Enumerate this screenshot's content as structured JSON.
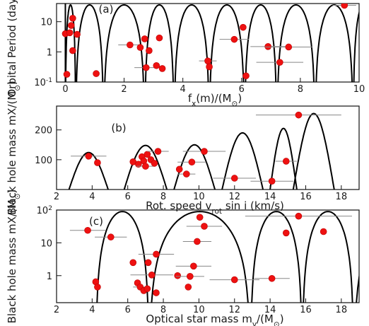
{
  "chart_data": [
    {
      "type": "scatter",
      "panel_label": "(a)",
      "xlabel": "f_x(m)/(M_⊙)",
      "ylabel": "Orbital Period (days)",
      "yscale": "log",
      "xlim": [
        -0.3,
        10
      ],
      "ylim": [
        0.1,
        40
      ],
      "xticks": [
        0,
        2,
        4,
        6,
        8,
        10
      ],
      "yticks": [
        {
          "v": 10,
          "label": "10"
        },
        {
          "v": 1,
          "label": "1"
        },
        {
          "v": 0.1,
          "label": "10^-1"
        }
      ],
      "curve": {
        "roots_x": [
          0,
          0.35,
          1.3,
          2.7,
          3.7,
          4.9,
          6.1,
          7.2,
          8.5,
          9.8
        ],
        "peak_y": 36
      },
      "points": [
        {
          "x": 0.0,
          "y": 4.0
        },
        {
          "x": 0.05,
          "y": 0.18
        },
        {
          "x": 0.15,
          "y": 4.3
        },
        {
          "x": 0.2,
          "y": 7.5
        },
        {
          "x": 0.25,
          "y": 13
        },
        {
          "x": 0.25,
          "y": 1.1
        },
        {
          "x": 0.4,
          "y": 3.8
        },
        {
          "x": 1.05,
          "y": 0.19
        },
        {
          "x": 2.2,
          "y": 1.7,
          "xerr": 0.4
        },
        {
          "x": 2.55,
          "y": 1.4
        },
        {
          "x": 2.7,
          "y": 2.7
        },
        {
          "x": 2.75,
          "y": 0.3,
          "xerr": 0.4
        },
        {
          "x": 2.85,
          "y": 1.1
        },
        {
          "x": 3.1,
          "y": 0.35
        },
        {
          "x": 3.2,
          "y": 2.9
        },
        {
          "x": 3.3,
          "y": 0.28
        },
        {
          "x": 4.85,
          "y": 0.5,
          "xerr": 0.3
        },
        {
          "x": 4.9,
          "y": 0.32
        },
        {
          "x": 5.75,
          "y": 2.6,
          "xerr": 0.5
        },
        {
          "x": 6.05,
          "y": 6.5
        },
        {
          "x": 6.15,
          "y": 0.16
        },
        {
          "x": 6.9,
          "y": 1.5,
          "xerr": 0.6
        },
        {
          "x": 7.3,
          "y": 0.45,
          "xerr": 0.8
        },
        {
          "x": 7.6,
          "y": 1.45,
          "xerr": 0.8
        },
        {
          "x": 9.5,
          "y": 35,
          "xerr": 0.4
        }
      ]
    },
    {
      "type": "scatter",
      "panel_label": "(b)",
      "xlabel": "Rot. speed v_rot sin i (km/s)",
      "ylabel": "Black hole mass mX/(M_⊙)",
      "xlim": [
        2,
        19
      ],
      "ylim": [
        0,
        280
      ],
      "xticks": [
        2,
        4,
        6,
        8,
        10,
        12,
        14,
        16,
        18
      ],
      "yticks": [
        {
          "v": 100,
          "label": "100"
        },
        {
          "v": 200,
          "label": "200"
        }
      ],
      "curve": {
        "arches": [
          [
            2.7,
            4.9,
            124
          ],
          [
            5.8,
            8.2,
            148
          ],
          [
            8.6,
            10.9,
            150
          ],
          [
            11.3,
            13.6,
            190
          ],
          [
            14.0,
            15.5,
            205
          ],
          [
            15.3,
            17.6,
            255
          ]
        ]
      },
      "points": [
        {
          "x": 3.8,
          "y": 112,
          "xerr": 1.0
        },
        {
          "x": 4.3,
          "y": 90
        },
        {
          "x": 6.3,
          "y": 93
        },
        {
          "x": 6.6,
          "y": 85
        },
        {
          "x": 6.8,
          "y": 110
        },
        {
          "x": 6.9,
          "y": 96
        },
        {
          "x": 7.0,
          "y": 78,
          "xerr": 0.5
        },
        {
          "x": 7.1,
          "y": 118
        },
        {
          "x": 7.3,
          "y": 100
        },
        {
          "x": 7.5,
          "y": 88
        },
        {
          "x": 7.7,
          "y": 128,
          "xerr": 0.6
        },
        {
          "x": 8.9,
          "y": 68
        },
        {
          "x": 9.3,
          "y": 52,
          "xerr": 0.5
        },
        {
          "x": 9.6,
          "y": 92,
          "xerr": 0.8
        },
        {
          "x": 10.3,
          "y": 128,
          "xerr": 1.2
        },
        {
          "x": 12.0,
          "y": 38,
          "xerr": 1.2
        },
        {
          "x": 14.1,
          "y": 28,
          "xerr": 1.2
        },
        {
          "x": 14.9,
          "y": 95,
          "xerr": 0.6
        },
        {
          "x": 15.6,
          "y": 250,
          "xerr": 2.4
        }
      ]
    },
    {
      "type": "scatter",
      "panel_label": "(c)",
      "xlabel": "Optical star mass m_v/(M_⊙)",
      "ylabel": "Black hole mass mX/(M_⊙)",
      "yscale": "log",
      "xlim": [
        2,
        19
      ],
      "ylim": [
        0.15,
        100
      ],
      "xticks": [
        2,
        4,
        6,
        8,
        10,
        12,
        14,
        16,
        18
      ],
      "yticks": [
        {
          "v": 100,
          "label": "10^2"
        },
        {
          "v": 10,
          "label": "10"
        },
        {
          "v": 1,
          "label": "1"
        }
      ],
      "curve": {
        "roots_x": [
          4.2,
          7.2,
          12.9,
          15.8,
          18.7
        ],
        "peak_y": 90
      },
      "points": [
        {
          "x": 3.75,
          "y": 24,
          "xerr": 1.0
        },
        {
          "x": 4.2,
          "y": 0.65
        },
        {
          "x": 4.3,
          "y": 0.45
        },
        {
          "x": 5.05,
          "y": 15,
          "xerr": 0.9
        },
        {
          "x": 6.3,
          "y": 2.5
        },
        {
          "x": 6.55,
          "y": 0.6
        },
        {
          "x": 6.7,
          "y": 0.45,
          "xerr": 0.4
        },
        {
          "x": 6.9,
          "y": 0.35
        },
        {
          "x": 7.1,
          "y": 0.4
        },
        {
          "x": 7.15,
          "y": 2.5
        },
        {
          "x": 7.35,
          "y": 1.05,
          "xerr": 1.2
        },
        {
          "x": 7.6,
          "y": 0.3
        },
        {
          "x": 7.6,
          "y": 4.5,
          "xerr": 1.0
        },
        {
          "x": 8.8,
          "y": 1.0
        },
        {
          "x": 9.4,
          "y": 0.45
        },
        {
          "x": 9.5,
          "y": 0.95,
          "xerr": 0.8
        },
        {
          "x": 9.7,
          "y": 1.95,
          "xerr": 1.0
        },
        {
          "x": 9.9,
          "y": 11,
          "xerr": 0.8
        },
        {
          "x": 10.05,
          "y": 60
        },
        {
          "x": 10.3,
          "y": 32,
          "xerr": 1.0
        },
        {
          "x": 12.0,
          "y": 0.75,
          "xerr": 1.4
        },
        {
          "x": 14.1,
          "y": 0.82,
          "xerr": 1.0
        },
        {
          "x": 14.9,
          "y": 20
        },
        {
          "x": 15.6,
          "y": 65,
          "xerr": 3.0
        },
        {
          "x": 17.0,
          "y": 22
        }
      ]
    }
  ]
}
